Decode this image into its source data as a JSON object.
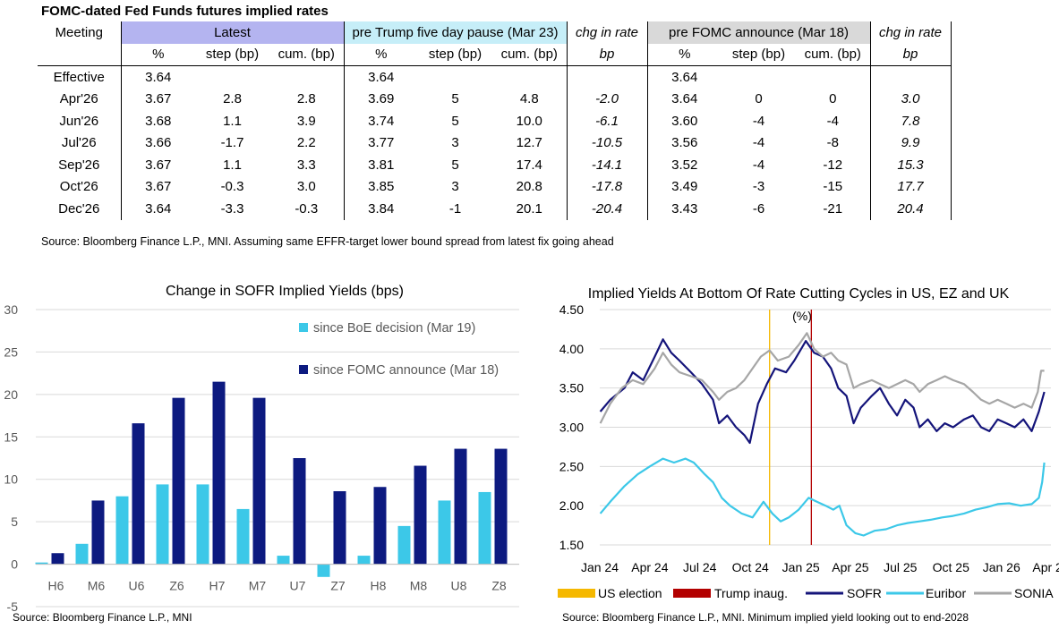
{
  "table": {
    "title": "FOMC-dated Fed Funds futures implied rates",
    "header1": {
      "meeting": "Meeting",
      "latest": "Latest",
      "trump": "pre Trump five day pause (Mar 23)",
      "chg1": "chg in rate",
      "fomc": "pre FOMC announce (Mar 18)",
      "chg2": "chg in rate"
    },
    "header2": {
      "pct1": "%",
      "step1": "step (bp)",
      "cum1": "cum. (bp)",
      "pct2": "%",
      "step2": "step (bp)",
      "cum2": "cum. (bp)",
      "bp1": "bp",
      "pct3": "%",
      "step3": "step (bp)",
      "cum3": "cum. (bp)",
      "bp2": "bp"
    },
    "rows": [
      [
        "Effective",
        "3.64",
        "",
        "",
        "3.64",
        "",
        "",
        "",
        "3.64",
        "",
        "",
        ""
      ],
      [
        "Apr'26",
        "3.67",
        "2.8",
        "2.8",
        "3.69",
        "5",
        "4.8",
        "-2.0",
        "3.64",
        "0",
        "0",
        "3.0"
      ],
      [
        "Jun'26",
        "3.68",
        "1.1",
        "3.9",
        "3.74",
        "5",
        "10.0",
        "-6.1",
        "3.60",
        "-4",
        "-4",
        "7.8"
      ],
      [
        "Jul'26",
        "3.66",
        "-1.7",
        "2.2",
        "3.77",
        "3",
        "12.7",
        "-10.5",
        "3.56",
        "-4",
        "-8",
        "9.9"
      ],
      [
        "Sep'26",
        "3.67",
        "1.1",
        "3.3",
        "3.81",
        "5",
        "17.4",
        "-14.1",
        "3.52",
        "-4",
        "-12",
        "15.3"
      ],
      [
        "Oct'26",
        "3.67",
        "-0.3",
        "3.0",
        "3.85",
        "3",
        "20.8",
        "-17.8",
        "3.49",
        "-3",
        "-15",
        "17.7"
      ],
      [
        "Dec'26",
        "3.64",
        "-3.3",
        "-0.3",
        "3.84",
        "-1",
        "20.1",
        "-20.4",
        "3.43",
        "-6",
        "-21",
        "20.4"
      ]
    ],
    "source": "Source: Bloomberg Finance L.P., MNI. Assuming same  EFFR-target lower bound spread from latest fix going ahead"
  },
  "left_source": "Source: Bloomberg Finance L.P., MNI",
  "right_source": "Source: Bloomberg Finance L.P., MNI. Minimum implied yield looking out to end-2028",
  "chart_data": [
    {
      "type": "bar",
      "title": "Change in SOFR Implied Yields (bps)",
      "categories": [
        "H6",
        "M6",
        "U6",
        "Z6",
        "H7",
        "M7",
        "U7",
        "Z7",
        "H8",
        "M8",
        "U8",
        "Z8"
      ],
      "series": [
        {
          "name": "since BoE decision (Mar 19)",
          "color": "#3cc8e8",
          "values": [
            0.2,
            2.4,
            8.0,
            9.4,
            9.4,
            6.5,
            1.0,
            -1.5,
            1.0,
            4.5,
            7.5,
            8.5
          ]
        },
        {
          "name": "since FOMC announce (Mar 18)",
          "color": "#0d1a80",
          "values": [
            1.3,
            7.5,
            16.6,
            19.6,
            21.5,
            19.6,
            12.5,
            8.6,
            9.1,
            11.6,
            13.6,
            13.6
          ]
        }
      ],
      "ylim": [
        -5,
        30
      ],
      "yticks": [
        -5,
        0,
        5,
        10,
        15,
        20,
        25,
        30
      ],
      "legend": "upper right inside plot",
      "grid": true
    },
    {
      "type": "line",
      "title": "Implied Yields At Bottom Of Rate Cutting Cycles in US, EZ and UK",
      "unit_label": "(%)",
      "x_ticks": [
        "Jan 24",
        "Apr 24",
        "Jul 24",
        "Oct 24",
        "Jan 25",
        "Apr 25",
        "Jul 25",
        "Oct 25",
        "Jan 26",
        "Apr 26"
      ],
      "ylim": [
        1.5,
        4.5
      ],
      "yticks": [
        "1.50",
        "2.00",
        "2.50",
        "3.00",
        "3.50",
        "4.00",
        "4.50"
      ],
      "grid": true,
      "legend": "bottom",
      "vlines": [
        {
          "name": "US election",
          "date": "2024-11-05",
          "color": "#f5b800"
        },
        {
          "name": "Trump inaug.",
          "date": "2025-01-20",
          "color": "#b30000"
        }
      ],
      "series": [
        {
          "name": "SOFR",
          "color": "#14147a",
          "points": [
            [
              "2024-01-02",
              3.2
            ],
            [
              "2024-01-20",
              3.35
            ],
            [
              "2024-02-15",
              3.5
            ],
            [
              "2024-03-01",
              3.7
            ],
            [
              "2024-03-20",
              3.6
            ],
            [
              "2024-04-10",
              3.9
            ],
            [
              "2024-04-25",
              4.12
            ],
            [
              "2024-05-10",
              3.95
            ],
            [
              "2024-05-25",
              3.85
            ],
            [
              "2024-06-15",
              3.7
            ],
            [
              "2024-07-05",
              3.55
            ],
            [
              "2024-07-25",
              3.35
            ],
            [
              "2024-08-05",
              3.05
            ],
            [
              "2024-08-20",
              3.15
            ],
            [
              "2024-09-05",
              3.0
            ],
            [
              "2024-09-20",
              2.9
            ],
            [
              "2024-09-30",
              2.8
            ],
            [
              "2024-10-15",
              3.3
            ],
            [
              "2024-10-31",
              3.55
            ],
            [
              "2024-11-15",
              3.75
            ],
            [
              "2024-12-05",
              3.7
            ],
            [
              "2024-12-20",
              3.85
            ],
            [
              "2025-01-10",
              4.1
            ],
            [
              "2025-01-25",
              3.95
            ],
            [
              "2025-02-10",
              3.9
            ],
            [
              "2025-02-25",
              3.75
            ],
            [
              "2025-03-10",
              3.5
            ],
            [
              "2025-03-25",
              3.4
            ],
            [
              "2025-04-07",
              3.05
            ],
            [
              "2025-04-20",
              3.25
            ],
            [
              "2025-05-10",
              3.4
            ],
            [
              "2025-05-25",
              3.5
            ],
            [
              "2025-06-10",
              3.3
            ],
            [
              "2025-06-25",
              3.15
            ],
            [
              "2025-07-10",
              3.35
            ],
            [
              "2025-07-25",
              3.25
            ],
            [
              "2025-08-05",
              3.0
            ],
            [
              "2025-08-20",
              3.1
            ],
            [
              "2025-09-05",
              2.95
            ],
            [
              "2025-09-20",
              3.05
            ],
            [
              "2025-10-05",
              3.0
            ],
            [
              "2025-10-25",
              3.1
            ],
            [
              "2025-11-10",
              3.15
            ],
            [
              "2025-11-25",
              3.0
            ],
            [
              "2025-12-10",
              2.95
            ],
            [
              "2025-12-25",
              3.1
            ],
            [
              "2026-01-10",
              3.05
            ],
            [
              "2026-01-25",
              3.0
            ],
            [
              "2026-02-10",
              3.1
            ],
            [
              "2026-02-25",
              2.95
            ],
            [
              "2026-03-10",
              3.2
            ],
            [
              "2026-03-20",
              3.45
            ]
          ]
        },
        {
          "name": "Euribor",
          "color": "#3cc8e8",
          "points": [
            [
              "2024-01-02",
              1.9
            ],
            [
              "2024-01-20",
              2.05
            ],
            [
              "2024-02-15",
              2.25
            ],
            [
              "2024-03-10",
              2.4
            ],
            [
              "2024-04-01",
              2.5
            ],
            [
              "2024-04-25",
              2.6
            ],
            [
              "2024-05-15",
              2.55
            ],
            [
              "2024-06-05",
              2.6
            ],
            [
              "2024-06-20",
              2.55
            ],
            [
              "2024-07-10",
              2.4
            ],
            [
              "2024-07-25",
              2.3
            ],
            [
              "2024-08-10",
              2.1
            ],
            [
              "2024-08-25",
              2.0
            ],
            [
              "2024-09-15",
              1.9
            ],
            [
              "2024-10-05",
              1.85
            ],
            [
              "2024-10-25",
              2.05
            ],
            [
              "2024-11-10",
              1.9
            ],
            [
              "2024-11-25",
              1.8
            ],
            [
              "2024-12-10",
              1.85
            ],
            [
              "2024-12-28",
              1.95
            ],
            [
              "2025-01-15",
              2.1
            ],
            [
              "2025-01-30",
              2.05
            ],
            [
              "2025-02-15",
              2.0
            ],
            [
              "2025-03-01",
              1.95
            ],
            [
              "2025-03-12",
              2.0
            ],
            [
              "2025-03-25",
              1.75
            ],
            [
              "2025-04-10",
              1.65
            ],
            [
              "2025-04-25",
              1.62
            ],
            [
              "2025-05-15",
              1.68
            ],
            [
              "2025-06-05",
              1.7
            ],
            [
              "2025-06-25",
              1.75
            ],
            [
              "2025-07-15",
              1.78
            ],
            [
              "2025-08-05",
              1.8
            ],
            [
              "2025-08-25",
              1.82
            ],
            [
              "2025-09-15",
              1.85
            ],
            [
              "2025-10-05",
              1.87
            ],
            [
              "2025-10-25",
              1.9
            ],
            [
              "2025-11-15",
              1.95
            ],
            [
              "2025-12-05",
              1.98
            ],
            [
              "2025-12-25",
              2.02
            ],
            [
              "2026-01-15",
              2.03
            ],
            [
              "2026-02-05",
              2.0
            ],
            [
              "2026-02-25",
              2.02
            ],
            [
              "2026-03-10",
              2.1
            ],
            [
              "2026-03-16",
              2.3
            ],
            [
              "2026-03-20",
              2.55
            ]
          ]
        },
        {
          "name": "SONIA",
          "color": "#a6a6a6",
          "points": [
            [
              "2024-01-02",
              3.05
            ],
            [
              "2024-01-20",
              3.3
            ],
            [
              "2024-02-10",
              3.5
            ],
            [
              "2024-03-01",
              3.6
            ],
            [
              "2024-03-20",
              3.55
            ],
            [
              "2024-04-10",
              3.75
            ],
            [
              "2024-04-25",
              3.95
            ],
            [
              "2024-05-10",
              3.8
            ],
            [
              "2024-05-25",
              3.7
            ],
            [
              "2024-06-15",
              3.65
            ],
            [
              "2024-07-05",
              3.6
            ],
            [
              "2024-07-25",
              3.45
            ],
            [
              "2024-08-05",
              3.35
            ],
            [
              "2024-08-20",
              3.45
            ],
            [
              "2024-09-05",
              3.5
            ],
            [
              "2024-09-20",
              3.6
            ],
            [
              "2024-10-05",
              3.75
            ],
            [
              "2024-10-20",
              3.9
            ],
            [
              "2024-11-05",
              3.98
            ],
            [
              "2024-11-20",
              3.85
            ],
            [
              "2024-12-10",
              3.9
            ],
            [
              "2024-12-28",
              4.05
            ],
            [
              "2025-01-12",
              4.2
            ],
            [
              "2025-01-25",
              4.0
            ],
            [
              "2025-02-10",
              3.9
            ],
            [
              "2025-02-25",
              3.95
            ],
            [
              "2025-03-10",
              3.85
            ],
            [
              "2025-03-25",
              3.8
            ],
            [
              "2025-04-07",
              3.5
            ],
            [
              "2025-04-20",
              3.55
            ],
            [
              "2025-05-10",
              3.6
            ],
            [
              "2025-05-25",
              3.55
            ],
            [
              "2025-06-10",
              3.5
            ],
            [
              "2025-06-25",
              3.55
            ],
            [
              "2025-07-10",
              3.6
            ],
            [
              "2025-07-25",
              3.55
            ],
            [
              "2025-08-05",
              3.45
            ],
            [
              "2025-08-20",
              3.55
            ],
            [
              "2025-09-05",
              3.6
            ],
            [
              "2025-09-20",
              3.65
            ],
            [
              "2025-10-05",
              3.6
            ],
            [
              "2025-10-25",
              3.55
            ],
            [
              "2025-11-10",
              3.45
            ],
            [
              "2025-11-25",
              3.35
            ],
            [
              "2025-12-10",
              3.3
            ],
            [
              "2025-12-25",
              3.35
            ],
            [
              "2026-01-10",
              3.3
            ],
            [
              "2026-01-25",
              3.25
            ],
            [
              "2026-02-10",
              3.3
            ],
            [
              "2026-02-25",
              3.25
            ],
            [
              "2026-03-08",
              3.45
            ],
            [
              "2026-03-14",
              3.72
            ],
            [
              "2026-03-20",
              3.72
            ]
          ]
        }
      ]
    }
  ]
}
